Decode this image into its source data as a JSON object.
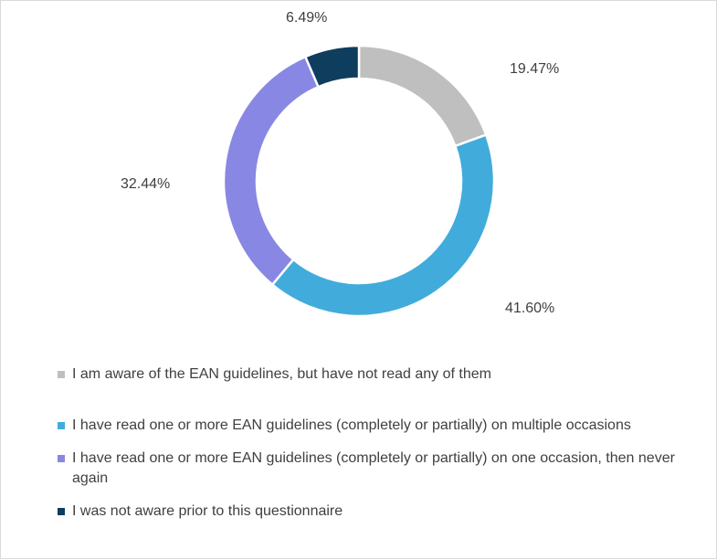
{
  "chart_data": {
    "type": "pie",
    "variant": "donut",
    "series": [
      {
        "label": "I am aware of the EAN guidelines, but have not read any of them",
        "value": 19.47,
        "display": "19.47%",
        "color": "#bfbfbf"
      },
      {
        "label": "I have read one or more EAN guidelines (completely or partially) on multiple occasions",
        "value": 41.6,
        "display": "41.60%",
        "color": "#41acdb"
      },
      {
        "label": "I have read one or more EAN guidelines (completely or partially) on one occasion, then never again",
        "value": 32.44,
        "display": "32.44%",
        "color": "#8887e3"
      },
      {
        "label": "I was not aware prior to this questionnaire",
        "value": 6.49,
        "display": "6.49%",
        "color": "#0f3d5e"
      }
    ],
    "legend_position": "bottom"
  }
}
